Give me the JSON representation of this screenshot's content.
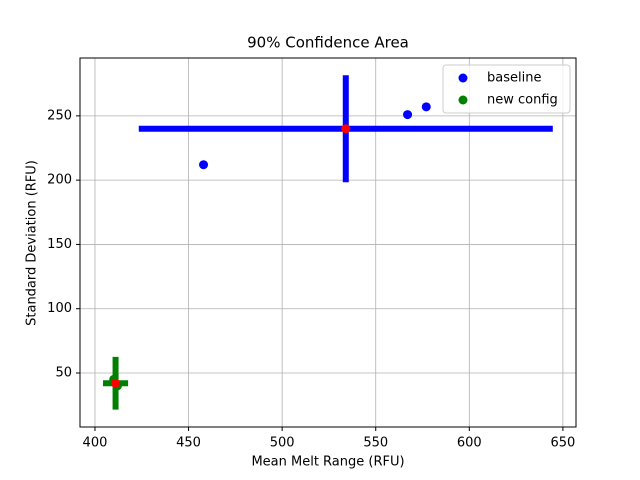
{
  "chart_data": {
    "type": "scatter",
    "title": "90% Confidence Area",
    "x_label": "Mean Melt Range (RFU)",
    "y_label": "Standard Deviation (RFU)",
    "xlim": [
      392,
      657
    ],
    "ylim": [
      8,
      295
    ],
    "xticks": [
      400,
      450,
      500,
      550,
      600,
      650
    ],
    "yticks": [
      50,
      100,
      150,
      200,
      250
    ],
    "grid": true,
    "legend": "upper right",
    "mean_color": "red",
    "series": [
      {
        "name": "baseline",
        "color": "blue",
        "x": [
          458,
          567,
          577
        ],
        "y": [
          212,
          251,
          257
        ],
        "mean_x": 534,
        "mean_y": 240,
        "xerr": 110.6,
        "yerr": 41.6
      },
      {
        "name": "new config",
        "color": "green",
        "x": [
          410,
          412
        ],
        "y": [
          45,
          40
        ],
        "mean_x": 411,
        "mean_y": 42,
        "xerr": 6.7,
        "yerr": 20.5
      }
    ]
  }
}
